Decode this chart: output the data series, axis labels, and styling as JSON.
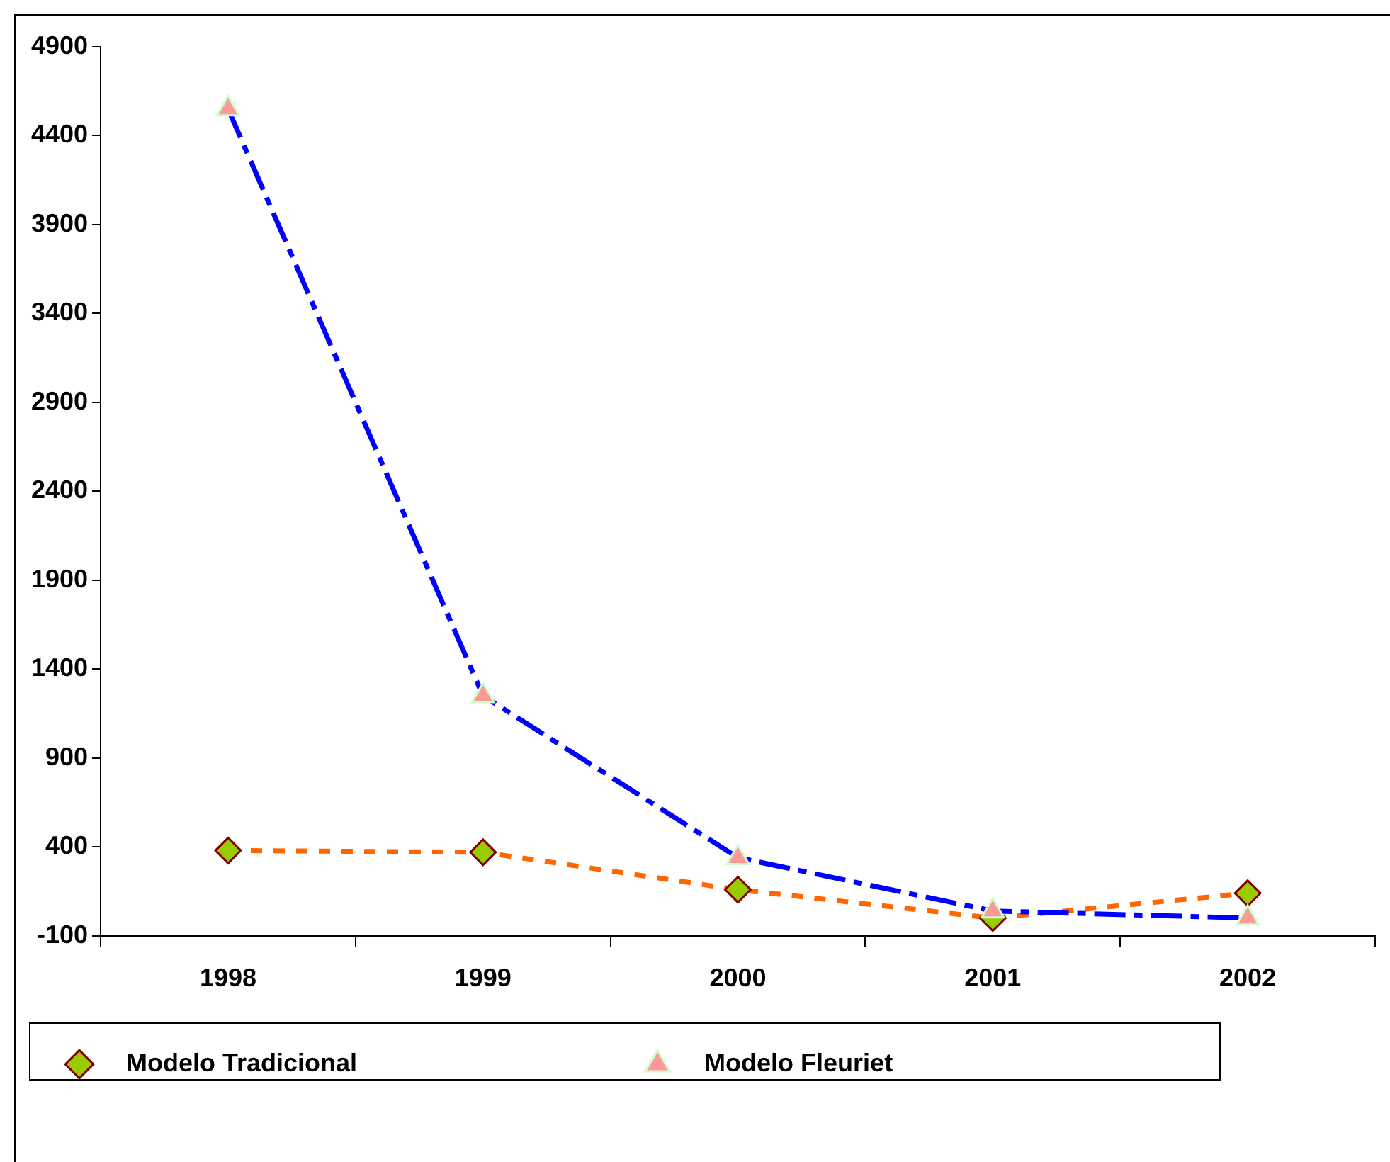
{
  "chart_data": {
    "type": "line",
    "categories": [
      "1998",
      "1999",
      "2000",
      "2001",
      "2002"
    ],
    "series": [
      {
        "name": "Modelo Tradicional",
        "color": "#ff6600",
        "values": [
          380,
          370,
          160,
          0,
          140
        ],
        "marker": "diamond",
        "line_style": "dotted"
      },
      {
        "name": "Modelo Fleuriet",
        "color": "#0000ff",
        "values": [
          4550,
          1250,
          340,
          40,
          0
        ],
        "marker": "triangle",
        "line_style": "dashed"
      }
    ],
    "ylim": [
      -100,
      4900
    ],
    "yticks": [
      -100,
      400,
      900,
      1400,
      1900,
      2400,
      2900,
      3400,
      3900,
      4400,
      4900
    ],
    "grid": false,
    "legend": "bottom"
  }
}
